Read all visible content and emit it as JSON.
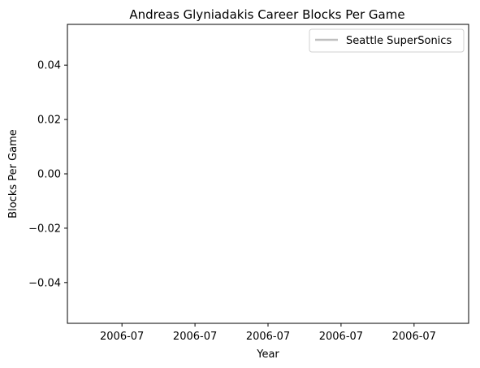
{
  "chart_data": {
    "type": "line",
    "title": "Andreas Glyniadakis Career Blocks Per Game",
    "xlabel": "Year",
    "ylabel": "Blocks Per Game",
    "x_tick_labels": [
      "2006-07",
      "2006-07",
      "2006-07",
      "2006-07",
      "2006-07"
    ],
    "y_ticks": [
      -0.04,
      -0.02,
      0.0,
      0.02,
      0.04
    ],
    "y_tick_labels": [
      "−0.04",
      "−0.02",
      "0.00",
      "0.02",
      "0.04"
    ],
    "ylim": [
      -0.055,
      0.055
    ],
    "grid": false,
    "legend_position": "top-right",
    "series": [
      {
        "name": "Seattle SuperSonics",
        "color": "#bfbfbf",
        "x": [
          "2006-07"
        ],
        "values": [
          0.0
        ]
      }
    ]
  }
}
